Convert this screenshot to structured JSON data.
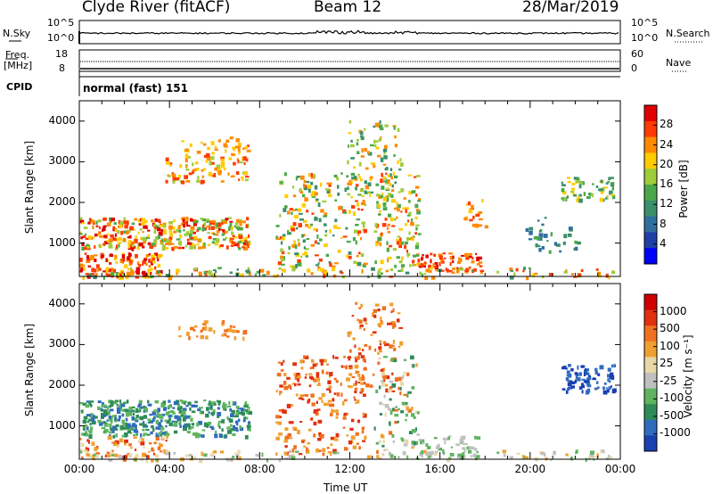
{
  "header": {
    "station": "Clyde River (fitACF)",
    "beam": "Beam 12",
    "date": "28/Mar/2019"
  },
  "noise_panel": {
    "left_label": "N.Sky",
    "right_label": "N.Search",
    "left_ticks": [
      "10^5",
      "10^0"
    ],
    "right_ticks": [
      "10^5",
      "10^0"
    ]
  },
  "freq_panel": {
    "left_label_1": "Freq.",
    "left_label_2": "[MHz]",
    "right_label": "Nave",
    "left_ticks": [
      "18",
      "8"
    ],
    "right_ticks": [
      "60",
      "0"
    ]
  },
  "cpid_panel": {
    "label": "CPID",
    "text": "normal (fast) 151"
  },
  "chart_data": [
    {
      "type": "heatmap",
      "ylabel": "Slant Range [km]",
      "y_ticks": [
        "4000",
        "3000",
        "2000",
        "1000"
      ],
      "ylim": [
        180,
        4500
      ],
      "colorbar_label": "Power [dB]",
      "colorbar_ticks": [
        "28",
        "24",
        "20",
        "16",
        "12",
        "8",
        "4"
      ],
      "colors": [
        "#0000ff",
        "#1f3fa8",
        "#2f6fa0",
        "#3a8f6a",
        "#4aa84a",
        "#9fcc3a",
        "#ffcc00",
        "#ff8a00",
        "#ff3a00",
        "#e00000"
      ]
    },
    {
      "type": "heatmap",
      "ylabel": "Slant Range [km]",
      "y_ticks": [
        "4000",
        "3000",
        "2000",
        "1000"
      ],
      "ylim": [
        180,
        4500
      ],
      "xlabel": "Time UT",
      "x_ticks": [
        "00:00",
        "04:00",
        "08:00",
        "12:00",
        "16:00",
        "20:00",
        "00:00"
      ],
      "colorbar_label": "Velocity [m s⁻¹]",
      "colorbar_ticks": [
        "1000",
        "500",
        "100",
        "25",
        "-25",
        "-100",
        "-500",
        "-1000"
      ],
      "colors": [
        "#1a3fb0",
        "#2f6cc0",
        "#2e8b57",
        "#5fb55f",
        "#c0c0c0",
        "#e8d8a8",
        "#f0a030",
        "#f07020",
        "#e03010",
        "#d00000"
      ]
    }
  ]
}
